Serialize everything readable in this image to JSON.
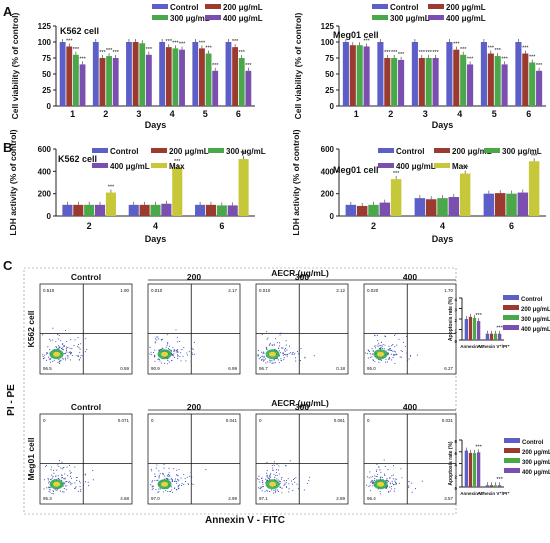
{
  "colors": {
    "control": "#5b5fc7",
    "c200": "#9b3a2f",
    "c300": "#4aa84a",
    "c400": "#7a4fb0",
    "max": "#c7c73a"
  },
  "panels": {
    "A": "A",
    "B": "B",
    "C": "C"
  },
  "chart_data": [
    {
      "id": "A-K562",
      "type": "bar",
      "title": "K562 cell",
      "xlabel": "Days",
      "ylabel": "Cell viability (% of control)",
      "ylim": [
        0,
        125
      ],
      "yticks": [
        0,
        25,
        50,
        75,
        100,
        125
      ],
      "categories": [
        "1",
        "2",
        "3",
        "4",
        "5",
        "6"
      ],
      "legend": [
        "Control",
        "200 μg/mL",
        "300 μg/mL",
        "400 μg/mL"
      ],
      "series": [
        {
          "name": "Control",
          "values": [
            100,
            100,
            100,
            100,
            100,
            100
          ]
        },
        {
          "name": "200 μg/mL",
          "values": [
            93,
            75,
            100,
            92,
            90,
            92
          ]
        },
        {
          "name": "300 μg/mL",
          "values": [
            80,
            78,
            98,
            90,
            82,
            75
          ]
        },
        {
          "name": "400 μg/mL",
          "values": [
            65,
            75,
            80,
            88,
            55,
            55
          ]
        }
      ]
    },
    {
      "id": "A-Meg01",
      "type": "bar",
      "title": "Meg01 cell",
      "xlabel": "Days",
      "ylabel": "Cell viability (% of control)",
      "ylim": [
        0,
        125
      ],
      "yticks": [
        0,
        25,
        50,
        75,
        100,
        125
      ],
      "categories": [
        "1",
        "2",
        "3",
        "4",
        "5",
        "6"
      ],
      "legend": [
        "Control",
        "200 μg/mL",
        "300 μg/mL",
        "400 μg/mL"
      ],
      "series": [
        {
          "name": "Control",
          "values": [
            100,
            100,
            100,
            100,
            100,
            100
          ]
        },
        {
          "name": "200 μg/mL",
          "values": [
            95,
            75,
            75,
            88,
            82,
            82
          ]
        },
        {
          "name": "300 μg/mL",
          "values": [
            95,
            75,
            75,
            80,
            78,
            68
          ]
        },
        {
          "name": "400 μg/mL",
          "values": [
            93,
            72,
            75,
            65,
            65,
            55
          ]
        }
      ]
    },
    {
      "id": "B-K562",
      "type": "bar",
      "title": "K562 cell",
      "xlabel": "Days",
      "ylabel": "LDH activity (% of control)",
      "ylim": [
        0,
        600
      ],
      "yticks": [
        0,
        200,
        400,
        600
      ],
      "categories": [
        "2",
        "4",
        "6"
      ],
      "legend": [
        "Control",
        "200 μg/mL",
        "300 μg/mL",
        "400 μg/mL",
        "Max"
      ],
      "series": [
        {
          "name": "Control",
          "values": [
            100,
            100,
            100
          ]
        },
        {
          "name": "200 μg/mL",
          "values": [
            100,
            100,
            100
          ]
        },
        {
          "name": "300 μg/mL",
          "values": [
            100,
            100,
            95
          ]
        },
        {
          "name": "400 μg/mL",
          "values": [
            100,
            110,
            95
          ]
        },
        {
          "name": "Max",
          "values": [
            210,
            440,
            510
          ]
        }
      ]
    },
    {
      "id": "B-Meg01",
      "type": "bar",
      "title": "Meg01 cell",
      "xlabel": "Days",
      "ylabel": "LDH activity (% of control)",
      "ylim": [
        0,
        600
      ],
      "yticks": [
        0,
        200,
        400,
        600
      ],
      "categories": [
        "2",
        "4",
        "6"
      ],
      "legend": [
        "Control",
        "200 μg/mL",
        "300 μg/mL",
        "400 μg/mL",
        "Max"
      ],
      "series": [
        {
          "name": "Control",
          "values": [
            100,
            160,
            200
          ]
        },
        {
          "name": "200 μg/mL",
          "values": [
            90,
            150,
            205
          ]
        },
        {
          "name": "300 μg/mL",
          "values": [
            100,
            160,
            200
          ]
        },
        {
          "name": "400 μg/mL",
          "values": [
            120,
            170,
            210
          ]
        },
        {
          "name": "Max",
          "values": [
            330,
            380,
            490
          ]
        }
      ]
    },
    {
      "id": "C-K562-apoptosis",
      "type": "bar",
      "title": "",
      "ylabel": "Apoptosis rate (%)",
      "ylim": [
        0,
        4
      ],
      "yticks": [
        0,
        1,
        2,
        3,
        4
      ],
      "categories": [
        "Annexin V⁺",
        "Annexin V⁺/PI⁺"
      ],
      "legend": [
        "Control",
        "200 μg/mL",
        "300 μg/mL",
        "400 μg/mL"
      ],
      "series": [
        {
          "name": "Control",
          "values": [
            2.0,
            0.6
          ]
        },
        {
          "name": "200 μg/mL",
          "values": [
            2.2,
            0.6
          ]
        },
        {
          "name": "300 μg/mL",
          "values": [
            2.1,
            0.6
          ]
        },
        {
          "name": "400 μg/mL",
          "values": [
            1.8,
            0.6
          ]
        }
      ]
    },
    {
      "id": "C-Meg01-apoptosis",
      "type": "bar",
      "title": "",
      "ylabel": "Apoptosis rate (%)",
      "ylim": [
        0,
        8
      ],
      "yticks": [
        0,
        2,
        4,
        6,
        8
      ],
      "categories": [
        "Annexin V⁺",
        "Annexin V⁺/PI⁺"
      ],
      "legend": [
        "Control",
        "200 μg/mL",
        "300 μg/mL",
        "400 μg/mL"
      ],
      "series": [
        {
          "name": "Control",
          "values": [
            6.2,
            0.3
          ]
        },
        {
          "name": "200 μg/mL",
          "values": [
            5.8,
            0.3
          ]
        },
        {
          "name": "300 μg/mL",
          "values": [
            5.8,
            0.3
          ]
        },
        {
          "name": "400 μg/mL",
          "values": [
            5.9,
            0.3
          ]
        }
      ]
    }
  ],
  "flow": {
    "aecr_label": "AECR (μg/mL)",
    "column_labels": [
      "Control",
      "200",
      "300",
      "400"
    ],
    "rows": [
      {
        "cell": "K562 cell",
        "plots": [
          {
            "ul": "0.510",
            "ur": "1.90",
            "ll": "96.5",
            "lr": "0.59"
          },
          {
            "ul": "0.010",
            "ur": "2.17",
            "ll": "90.9",
            "lr": "6.99"
          },
          {
            "ul": "0.010",
            "ur": "2.12",
            "ll": "96.7",
            "lr": "0.18"
          },
          {
            "ul": "0.020",
            "ur": "1.70",
            "ll": "95.0",
            "lr": "6.27"
          }
        ]
      },
      {
        "cell": "Meg01 cell",
        "plots": [
          {
            "ul": "0",
            "ur": "0.071",
            "ll": "95.3",
            "lr": "4.68"
          },
          {
            "ul": "0",
            "ur": "0.041",
            "ll": "97.0",
            "lr": "2.99"
          },
          {
            "ul": "0",
            "ur": "0.061",
            "ll": "97.1",
            "lr": "2.89"
          },
          {
            "ul": "0",
            "ur": "0.031",
            "ll": "96.4",
            "lr": "3.57"
          }
        ]
      }
    ],
    "x_axis_label": "Annexin V - FITC",
    "y_axis_label": "PI - PE"
  },
  "sig": "***"
}
